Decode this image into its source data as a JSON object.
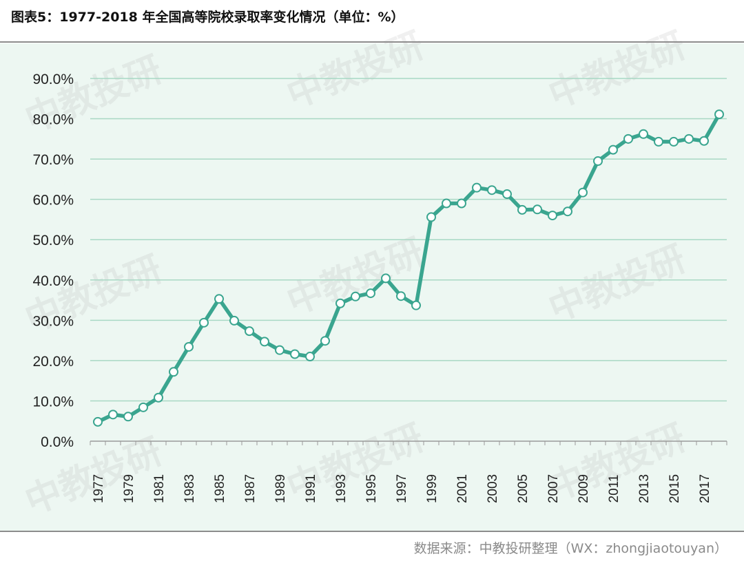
{
  "title": "图表5：1977-2018 年全国高等院校录取率变化情况（单位：%）",
  "source": "数据来源：中教投研整理（WX：zhongjiaotouyan）",
  "watermark": "中教投研",
  "colors": {
    "line": "#3aa58f",
    "grid": "#a8d8c4",
    "background": "#edf7f2",
    "marker_fill": "#ffffff"
  },
  "chart_data": {
    "type": "line",
    "title": "",
    "xlabel": "",
    "ylabel": "",
    "ylim": [
      0,
      90
    ],
    "yticks": [
      "0.0%",
      "10.0%",
      "20.0%",
      "30.0%",
      "40.0%",
      "50.0%",
      "60.0%",
      "70.0%",
      "80.0%",
      "90.0%"
    ],
    "xtick_labels": [
      "1977",
      "1979",
      "1981",
      "1983",
      "1985",
      "1987",
      "1989",
      "1991",
      "1993",
      "1995",
      "1997",
      "1999",
      "2001",
      "2003",
      "2005",
      "2007",
      "2009",
      "2011",
      "2013",
      "2015",
      "2017"
    ],
    "grid": true,
    "x": [
      1977,
      1978,
      1979,
      1980,
      1981,
      1982,
      1983,
      1984,
      1985,
      1986,
      1987,
      1988,
      1989,
      1990,
      1991,
      1992,
      1993,
      1994,
      1995,
      1996,
      1997,
      1998,
      1999,
      2000,
      2001,
      2002,
      2003,
      2004,
      2005,
      2006,
      2007,
      2008,
      2009,
      2010,
      2011,
      2012,
      2013,
      2014,
      2015,
      2016,
      2017,
      2018
    ],
    "series": [
      {
        "values": [
          4.8,
          6.6,
          6.1,
          8.4,
          10.8,
          17.2,
          23.4,
          29.4,
          35.3,
          29.9,
          27.3,
          24.7,
          22.6,
          21.6,
          21.0,
          24.9,
          34.2,
          35.9,
          36.7,
          40.4,
          36.0,
          33.7,
          55.6,
          59.0,
          59.0,
          62.9,
          62.3,
          61.3,
          57.4,
          57.5,
          56.0,
          57.0,
          61.7,
          69.5,
          72.3,
          75.0,
          76.2,
          74.3,
          74.3,
          75.0,
          74.5,
          81.1
        ]
      }
    ]
  }
}
